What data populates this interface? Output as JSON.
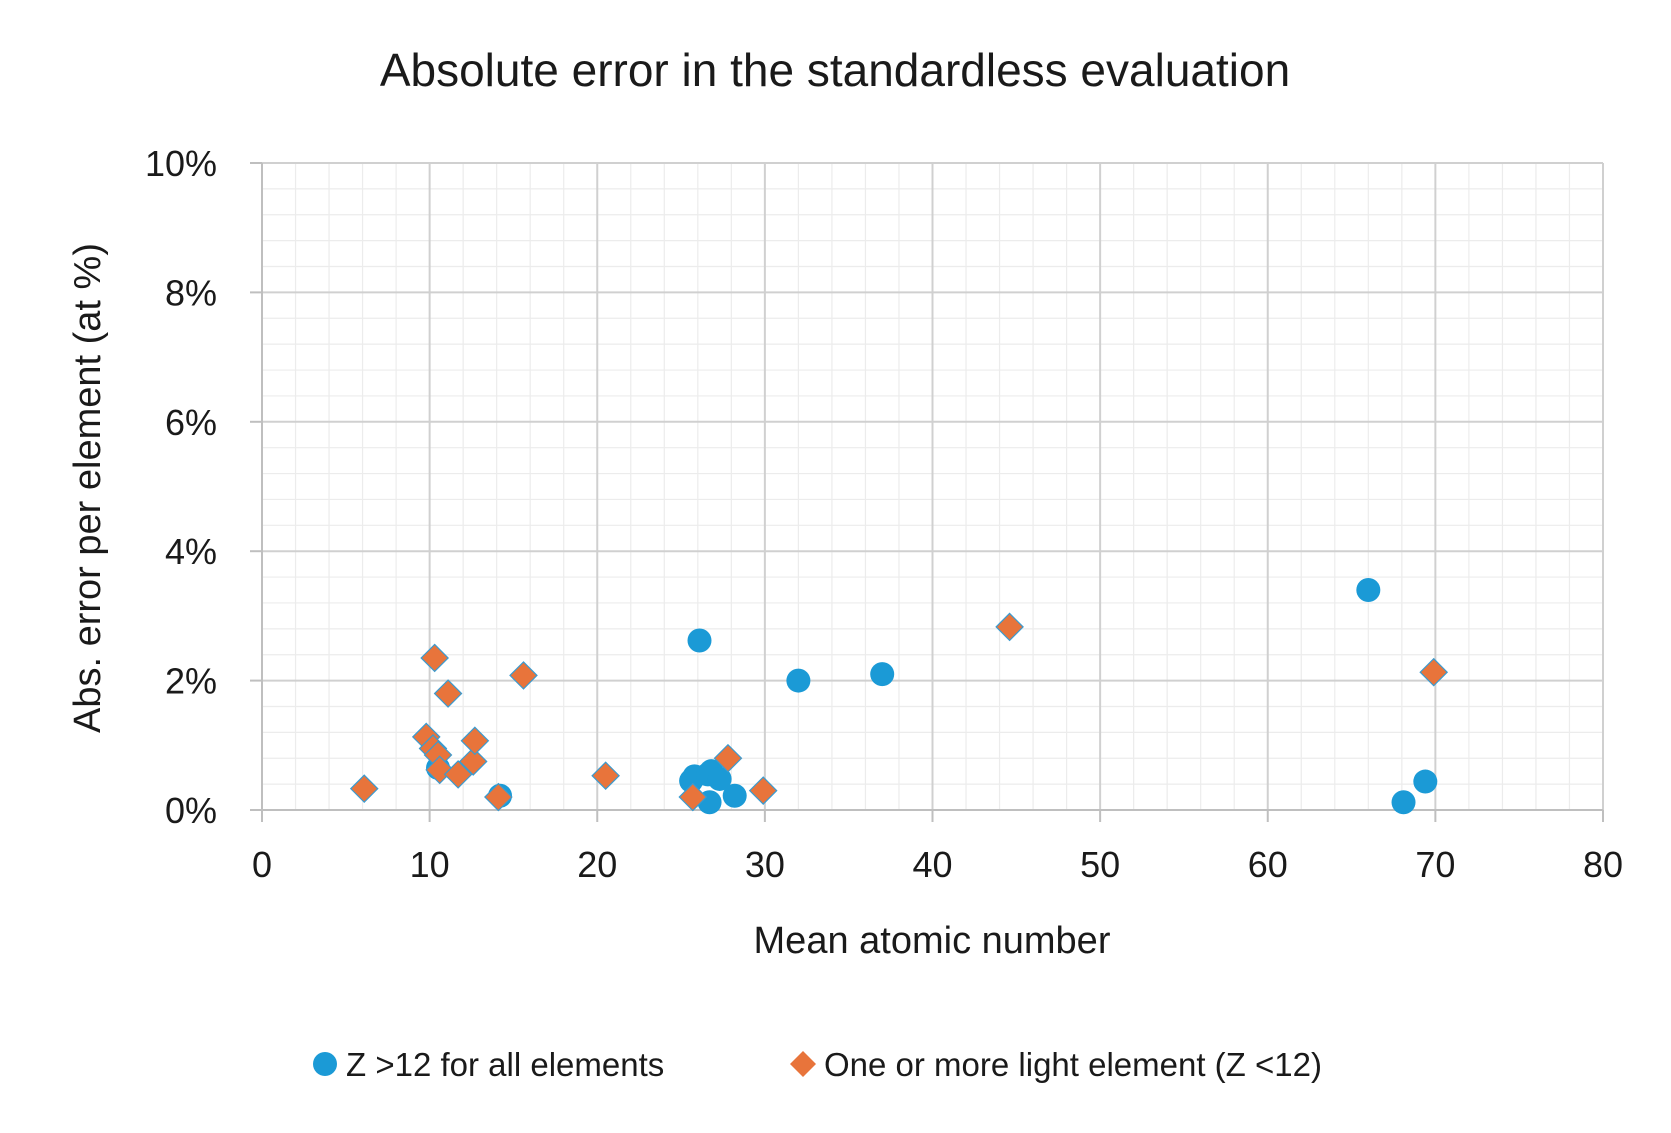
{
  "chart_data": {
    "type": "scatter",
    "title": "Absolute error in the standardless evaluation",
    "xlabel": "Mean atomic number",
    "ylabel": "Abs. error per element (at %)",
    "xlim": [
      0,
      80
    ],
    "ylim": [
      0,
      10
    ],
    "x_ticks": [
      0,
      10,
      20,
      30,
      40,
      50,
      60,
      70,
      80
    ],
    "x_tick_labels": [
      "0",
      "10",
      "20",
      "30",
      "40",
      "50",
      "60",
      "70",
      "80"
    ],
    "y_ticks": [
      0,
      2,
      4,
      6,
      8,
      10
    ],
    "y_tick_labels": [
      "0%",
      "2%",
      "4%",
      "6%",
      "8%",
      "10%"
    ],
    "grid": true,
    "legend_position": "bottom",
    "series": [
      {
        "name": "Z >12 for all elements",
        "marker": "circle",
        "color": "#1b9ad6",
        "points": [
          {
            "x": 26.1,
            "y": 2.62
          },
          {
            "x": 25.6,
            "y": 0.45
          },
          {
            "x": 25.8,
            "y": 0.52
          },
          {
            "x": 26.6,
            "y": 0.55
          },
          {
            "x": 26.8,
            "y": 0.6
          },
          {
            "x": 27.3,
            "y": 0.48
          },
          {
            "x": 26.7,
            "y": 0.12
          },
          {
            "x": 28.2,
            "y": 0.22
          },
          {
            "x": 32.0,
            "y": 2.0
          },
          {
            "x": 37.0,
            "y": 2.1
          },
          {
            "x": 66.0,
            "y": 3.4
          },
          {
            "x": 68.1,
            "y": 0.12
          },
          {
            "x": 69.4,
            "y": 0.44
          },
          {
            "x": 10.5,
            "y": 0.65
          },
          {
            "x": 14.2,
            "y": 0.22
          }
        ]
      },
      {
        "name": "One or more light element (Z <12)",
        "marker": "diamond",
        "color": "#e8743b",
        "points": [
          {
            "x": 6.1,
            "y": 0.33
          },
          {
            "x": 9.8,
            "y": 1.13
          },
          {
            "x": 10.2,
            "y": 0.95
          },
          {
            "x": 10.3,
            "y": 2.35
          },
          {
            "x": 10.5,
            "y": 0.85
          },
          {
            "x": 10.6,
            "y": 0.62
          },
          {
            "x": 11.1,
            "y": 1.8
          },
          {
            "x": 11.7,
            "y": 0.55
          },
          {
            "x": 12.6,
            "y": 0.75
          },
          {
            "x": 12.7,
            "y": 1.07
          },
          {
            "x": 14.1,
            "y": 0.2
          },
          {
            "x": 15.6,
            "y": 2.08
          },
          {
            "x": 20.5,
            "y": 0.53
          },
          {
            "x": 25.7,
            "y": 0.2
          },
          {
            "x": 27.8,
            "y": 0.8
          },
          {
            "x": 29.9,
            "y": 0.3
          },
          {
            "x": 44.6,
            "y": 2.83
          },
          {
            "x": 69.9,
            "y": 2.13
          }
        ]
      }
    ]
  }
}
